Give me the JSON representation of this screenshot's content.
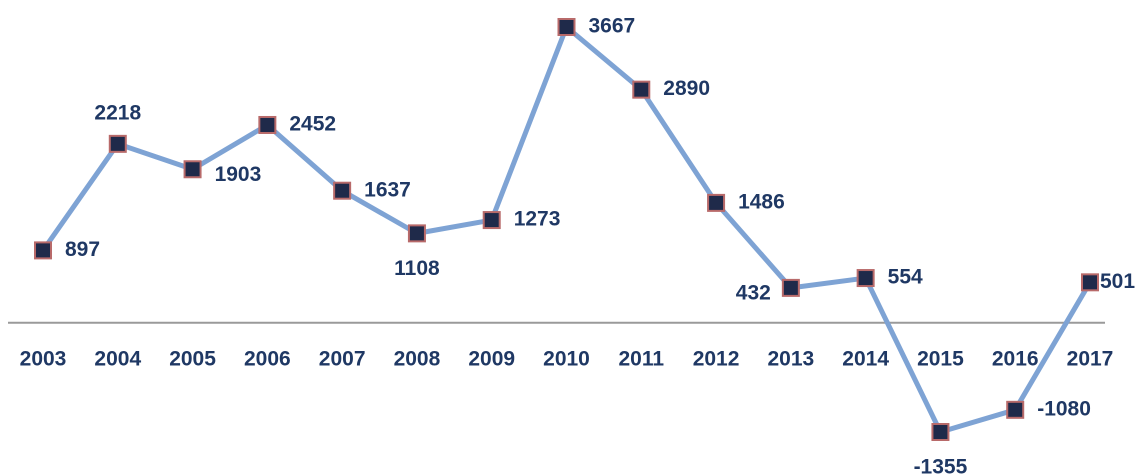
{
  "chart_data": {
    "type": "line",
    "categories": [
      "2003",
      "2004",
      "2005",
      "2006",
      "2007",
      "2008",
      "2009",
      "2010",
      "2011",
      "2012",
      "2013",
      "2014",
      "2015",
      "2016",
      "2017"
    ],
    "series": [
      {
        "name": null,
        "color": "#7ea3d4",
        "values": [
          897,
          2218,
          1903,
          2452,
          1637,
          1108,
          1273,
          3667,
          2890,
          1486,
          432,
          554,
          -1355,
          -1080,
          501
        ]
      }
    ]
  }
}
